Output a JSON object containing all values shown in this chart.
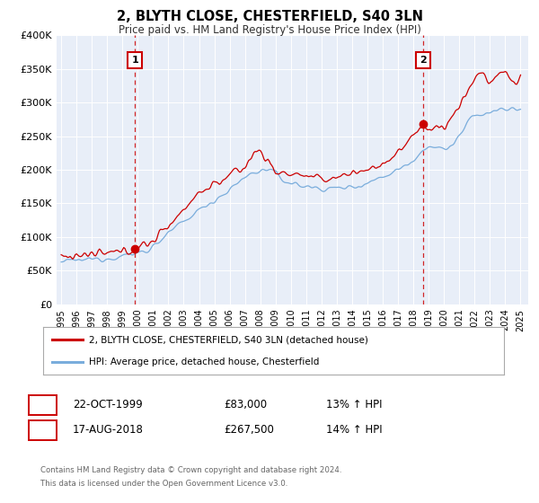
{
  "title": "2, BLYTH CLOSE, CHESTERFIELD, S40 3LN",
  "subtitle": "Price paid vs. HM Land Registry's House Price Index (HPI)",
  "ylim": [
    0,
    400000
  ],
  "xlim_start": 1994.7,
  "xlim_end": 2025.5,
  "yticks": [
    0,
    50000,
    100000,
    150000,
    200000,
    250000,
    300000,
    350000,
    400000
  ],
  "ytick_labels": [
    "£0",
    "£50K",
    "£100K",
    "£150K",
    "£200K",
    "£250K",
    "£300K",
    "£350K",
    "£400K"
  ],
  "xticks": [
    1995,
    1996,
    1997,
    1998,
    1999,
    2000,
    2001,
    2002,
    2003,
    2004,
    2005,
    2006,
    2007,
    2008,
    2009,
    2010,
    2011,
    2012,
    2013,
    2014,
    2015,
    2016,
    2017,
    2018,
    2019,
    2020,
    2021,
    2022,
    2023,
    2024,
    2025
  ],
  "marker1_x": 1999.81,
  "marker1_y": 83000,
  "marker2_x": 2018.63,
  "marker2_y": 267500,
  "house_line_color": "#cc0000",
  "hpi_line_color": "#7aaddc",
  "background_color": "#e8eef8",
  "grid_color": "#ffffff",
  "legend_label1": "2, BLYTH CLOSE, CHESTERFIELD, S40 3LN (detached house)",
  "legend_label2": "HPI: Average price, detached house, Chesterfield",
  "marker1_date": "22-OCT-1999",
  "marker1_price": "£83,000",
  "marker1_hpi": "13% ↑ HPI",
  "marker2_date": "17-AUG-2018",
  "marker2_price": "£267,500",
  "marker2_hpi": "14% ↑ HPI",
  "footer_text1": "Contains HM Land Registry data © Crown copyright and database right 2024.",
  "footer_text2": "This data is licensed under the Open Government Licence v3.0."
}
